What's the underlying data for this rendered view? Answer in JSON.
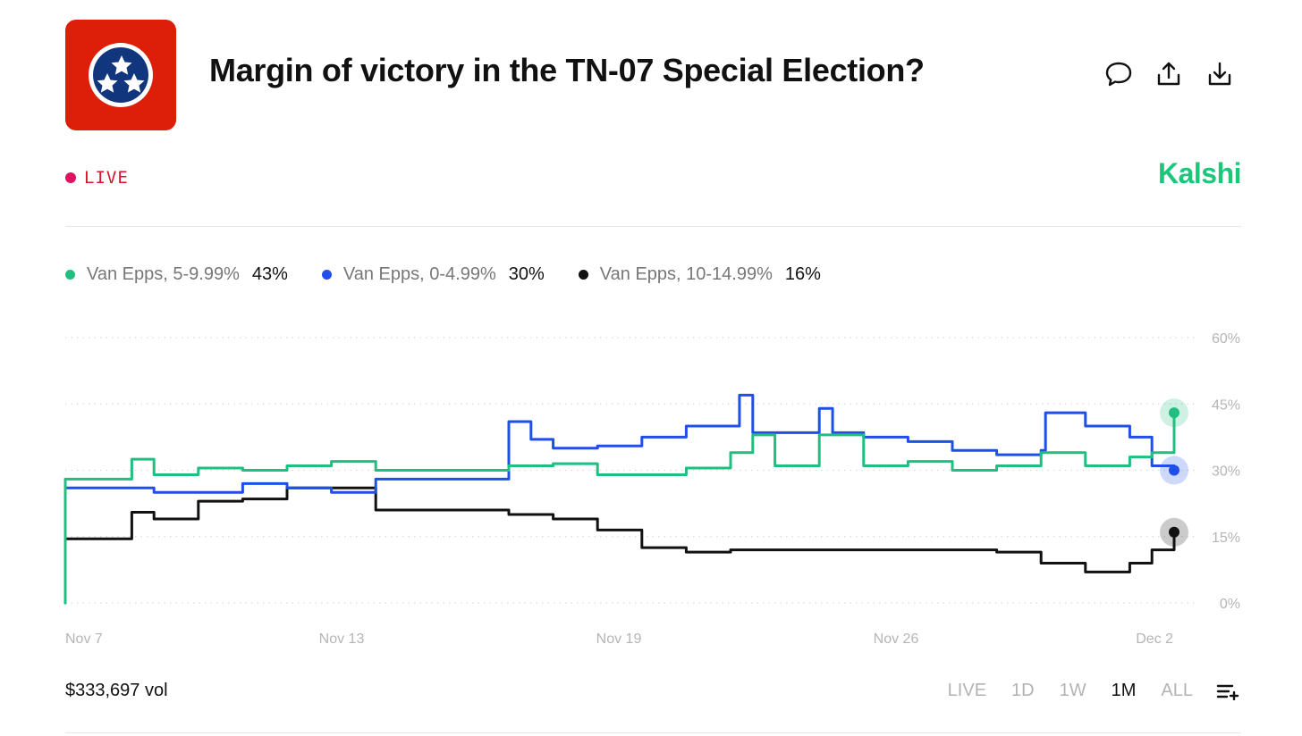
{
  "header": {
    "title": "Margin of victory in the TN-07 Special Election?",
    "status": "LIVE",
    "brand": "Kalshi",
    "icons": [
      "comment-icon",
      "share-icon",
      "download-icon"
    ]
  },
  "colors": {
    "green": "#1fbf81",
    "blue": "#1f4fe8",
    "black": "#111111",
    "live_dot": "#e0115f",
    "live_text": "#d9132b",
    "brand": "#1ec57b",
    "flag_red": "#dd1f0a",
    "flag_blue": "#12367e"
  },
  "legend": [
    {
      "name": "Van Epps, 5-9.99%",
      "value": "43%"
    },
    {
      "name": "Van Epps, 0-4.99%",
      "value": "30%"
    },
    {
      "name": "Van Epps, 10-14.99%",
      "value": "16%"
    }
  ],
  "chart_data": {
    "type": "line",
    "title": "",
    "xlabel": "",
    "ylabel": "",
    "x_ticks": [
      "Nov 7",
      "Nov 13",
      "Nov 19",
      "Nov 26",
      "Dec 2"
    ],
    "y_ticks": [
      "60%",
      "45%",
      "30%",
      "15%",
      "0%"
    ],
    "x_range": [
      "Nov 7",
      "Dec 2"
    ],
    "ylim": [
      0,
      60
    ],
    "grid": "horizontal dotted",
    "legend_position": "top-left",
    "series": [
      {
        "name": "Van Epps, 5-9.99%",
        "color": "#1fbf81",
        "x": [
          "Nov 7",
          "Nov 7",
          "Nov 8",
          "Nov 8.5",
          "Nov 9",
          "Nov 10",
          "Nov 11",
          "Nov 12",
          "Nov 13",
          "Nov 14",
          "Nov 16",
          "Nov 17",
          "Nov 18",
          "Nov 19",
          "Nov 20",
          "Nov 21",
          "Nov 22",
          "Nov 22.5",
          "Nov 23",
          "Nov 24",
          "Nov 25",
          "Nov 26",
          "Nov 27",
          "Nov 28",
          "Nov 29",
          "Nov 30",
          "Dec 1",
          "Dec 1.5",
          "Dec 2"
        ],
        "y": [
          0,
          28,
          28,
          32.5,
          29,
          30.5,
          30,
          31,
          32,
          30,
          30,
          31,
          31.5,
          29,
          29,
          30.5,
          34,
          38,
          31,
          38,
          31,
          32,
          30,
          31,
          34,
          31,
          33,
          34,
          43
        ]
      },
      {
        "name": "Van Epps, 0-4.99%",
        "color": "#1f4fe8",
        "x": [
          "Nov 7",
          "Nov 7",
          "Nov 8",
          "Nov 9",
          "Nov 10",
          "Nov 11",
          "Nov 12",
          "Nov 13",
          "Nov 14",
          "Nov 16",
          "Nov 17",
          "Nov 17.5",
          "Nov 18",
          "Nov 19",
          "Nov 20",
          "Nov 21",
          "Nov 22",
          "Nov 22.2",
          "Nov 22.5",
          "Nov 24",
          "Nov 24.3",
          "Nov 25",
          "Nov 26",
          "Nov 27",
          "Nov 28",
          "Nov 29",
          "Nov 29.1",
          "Nov 30",
          "Dec 1",
          "Dec 1.5",
          "Dec 2"
        ],
        "y": [
          0,
          26,
          26,
          25,
          25,
          27,
          26,
          25,
          28,
          28,
          41,
          37,
          35,
          35.5,
          37.5,
          40,
          40,
          47,
          38.5,
          44,
          38.5,
          37.5,
          36.5,
          34.5,
          33.5,
          34.5,
          43,
          40,
          37.5,
          31,
          30
        ]
      },
      {
        "name": "Van Epps, 10-14.99%",
        "color": "#111111",
        "x": [
          "Nov 7",
          "Nov 7",
          "Nov 8",
          "Nov 8.5",
          "Nov 9",
          "Nov 10",
          "Nov 11",
          "Nov 12",
          "Nov 13",
          "Nov 14",
          "Nov 16",
          "Nov 17",
          "Nov 18",
          "Nov 19",
          "Nov 20",
          "Nov 21",
          "Nov 22",
          "Nov 24",
          "Nov 26",
          "Nov 28",
          "Nov 29",
          "Nov 30",
          "Dec 1",
          "Dec 1.5",
          "Dec 2"
        ],
        "y": [
          0,
          14.5,
          14.5,
          20.5,
          19,
          23,
          23.5,
          26,
          26,
          21,
          21,
          20,
          19,
          16.5,
          12.5,
          11.5,
          12,
          12,
          12,
          11.5,
          9,
          7,
          9,
          12,
          16
        ]
      }
    ]
  },
  "footer": {
    "volume": "$333,697 vol",
    "ranges": [
      {
        "label": "LIVE",
        "active": false
      },
      {
        "label": "1D",
        "active": false
      },
      {
        "label": "1W",
        "active": false
      },
      {
        "label": "1M",
        "active": true
      },
      {
        "label": "ALL",
        "active": false
      }
    ]
  }
}
